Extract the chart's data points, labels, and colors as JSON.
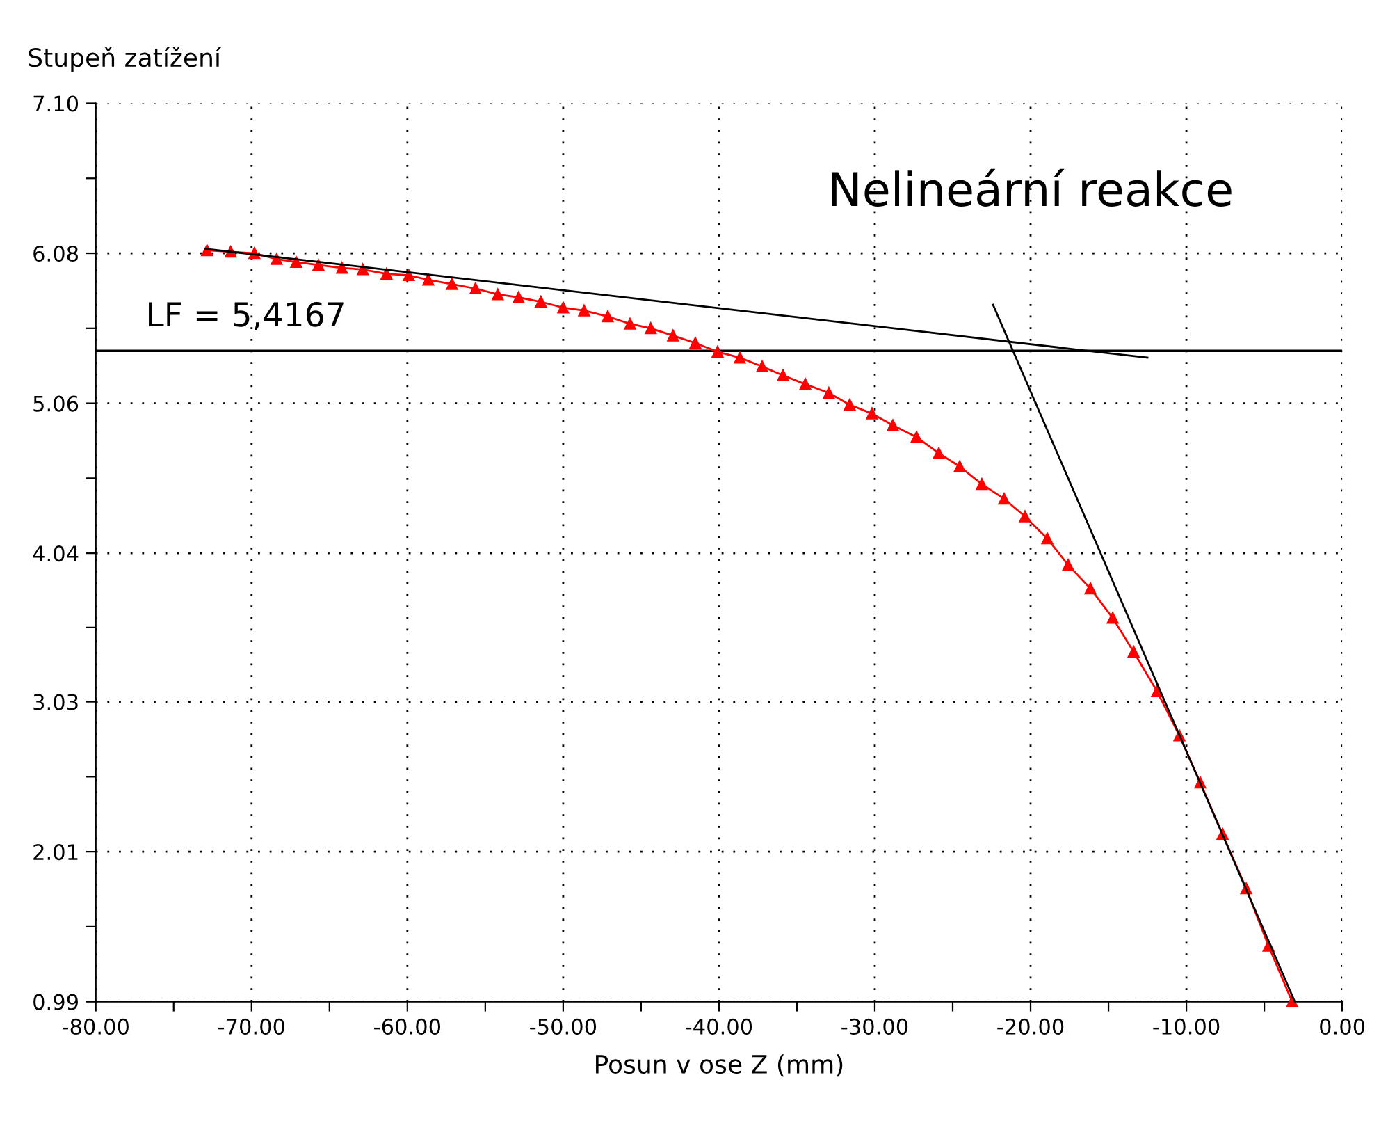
{
  "chart_data": {
    "type": "line",
    "xlabel": "Posun v ose Z (mm)",
    "ylabel": "Stupeň zatížení",
    "annotations": [
      "Nelineární reakce"
    ],
    "xlim": [
      -80,
      0
    ],
    "ylim": [
      0.99,
      7.1
    ],
    "xticks": [
      {
        "value": -80,
        "label": "-80.00"
      },
      {
        "value": -75,
        "label": null
      },
      {
        "value": -70,
        "label": "-70.00"
      },
      {
        "value": -65,
        "label": null
      },
      {
        "value": -60,
        "label": "-60.00"
      },
      {
        "value": -55,
        "label": null
      },
      {
        "value": -50,
        "label": "-50.00"
      },
      {
        "value": -45,
        "label": null
      },
      {
        "value": -40,
        "label": "-40.00"
      },
      {
        "value": -35,
        "label": null
      },
      {
        "value": -30,
        "label": "-30.00"
      },
      {
        "value": -25,
        "label": null
      },
      {
        "value": -20,
        "label": "-20.00"
      },
      {
        "value": -15,
        "label": null
      },
      {
        "value": -10,
        "label": "-10.00"
      },
      {
        "value": -5,
        "label": null
      },
      {
        "value": 0,
        "label": "0.00"
      }
    ],
    "yticks": [
      {
        "value": 0.99,
        "label": "0.99"
      },
      {
        "value": 1.5,
        "label": null
      },
      {
        "value": 2.01,
        "label": "2.01"
      },
      {
        "value": 2.52,
        "label": null
      },
      {
        "value": 3.03,
        "label": "3.03"
      },
      {
        "value": 3.535,
        "label": null
      },
      {
        "value": 4.04,
        "label": "4.04"
      },
      {
        "value": 4.55,
        "label": null
      },
      {
        "value": 5.06,
        "label": "5.06"
      },
      {
        "value": 5.57,
        "label": null
      },
      {
        "value": 6.08,
        "label": "6.08"
      },
      {
        "value": 6.59,
        "label": null
      },
      {
        "value": 7.1,
        "label": "7.10"
      }
    ],
    "grid": true,
    "legend": false,
    "ref_lines": [
      {
        "axis": "y",
        "value": 5.4167,
        "label": "LF = 5,4167",
        "color": "#000000"
      }
    ],
    "series": [
      {
        "color": "#ff0000",
        "marker": "triangle",
        "line_style": "solid",
        "x": [
          -72.86,
          -71.34,
          -69.82,
          -68.39,
          -67.14,
          -65.71,
          -64.2,
          -62.86,
          -61.34,
          -59.91,
          -58.66,
          -57.14,
          -55.63,
          -54.2,
          -52.86,
          -51.43,
          -50.0,
          -48.66,
          -47.14,
          -45.71,
          -44.38,
          -42.95,
          -41.52,
          -40.09,
          -38.66,
          -37.23,
          -35.89,
          -34.46,
          -32.95,
          -31.61,
          -30.18,
          -28.84,
          -27.32,
          -25.89,
          -24.55,
          -23.13,
          -21.7,
          -20.36,
          -18.93,
          -17.59,
          -16.16,
          -14.73,
          -13.39,
          -11.88,
          -10.45,
          -9.11,
          -7.68,
          -6.16,
          -4.73,
          -3.21
        ],
        "values": [
          6.1,
          6.09,
          6.08,
          6.04,
          6.02,
          6.0,
          5.98,
          5.97,
          5.94,
          5.93,
          5.9,
          5.87,
          5.84,
          5.8,
          5.78,
          5.75,
          5.71,
          5.69,
          5.65,
          5.6,
          5.57,
          5.52,
          5.47,
          5.41,
          5.37,
          5.31,
          5.25,
          5.19,
          5.13,
          5.05,
          4.99,
          4.91,
          4.83,
          4.72,
          4.63,
          4.51,
          4.41,
          4.29,
          4.14,
          3.96,
          3.8,
          3.6,
          3.37,
          3.1,
          2.8,
          2.48,
          2.13,
          1.76,
          1.37,
          0.99
        ]
      },
      {
        "color": "#000000",
        "marker": "none",
        "line_style": "solid",
        "x": [
          -72.95,
          -12.5
        ],
        "values": [
          6.11,
          5.37
        ]
      },
      {
        "color": "#000000",
        "marker": "none",
        "line_style": "solid",
        "x": [
          -22.41,
          -3.04
        ],
        "values": [
          5.73,
          0.99
        ]
      }
    ]
  }
}
